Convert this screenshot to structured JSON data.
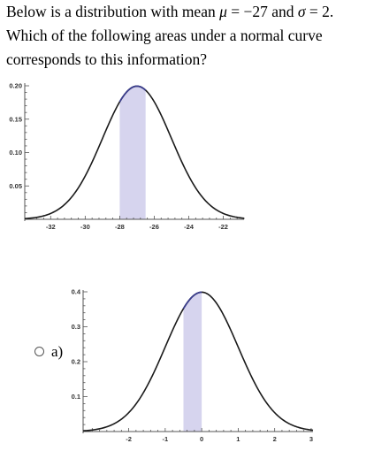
{
  "question": {
    "line1_prefix": "Below is a distribution with mean ",
    "mu": "μ",
    "eq1": " = −27 and ",
    "sigma": "σ",
    "eq2": " = 2.",
    "line2": "Which of the following areas under a normal curve",
    "line3": "corresponds to this information?"
  },
  "option": {
    "label": "a)"
  },
  "chart_data": [
    {
      "type": "area",
      "curve": "normal",
      "mean": -27,
      "sd": 2,
      "shaded_interval": [
        -28,
        -26.5
      ],
      "xlim": [
        -33.5,
        -20.8
      ],
      "ylim": [
        0,
        0.2
      ],
      "xticks": [
        "-32",
        "-30",
        "-28",
        "-26",
        "-24",
        "-22"
      ],
      "yticks": [
        "0.20",
        "0.15",
        "0.10",
        "0.05"
      ],
      "shade_color": "#d6d4ee"
    },
    {
      "type": "area",
      "curve": "normal",
      "mean": 0,
      "sd": 1,
      "shaded_interval": [
        -0.5,
        0
      ],
      "xlim": [
        -3.25,
        3.05
      ],
      "ylim": [
        0,
        0.4
      ],
      "xticks": [
        "-2",
        "-1",
        "0",
        "1",
        "2",
        "3"
      ],
      "yticks": [
        "0.4",
        "0.3",
        "0.2",
        "0.1"
      ],
      "shade_color": "#d6d4ee"
    }
  ]
}
